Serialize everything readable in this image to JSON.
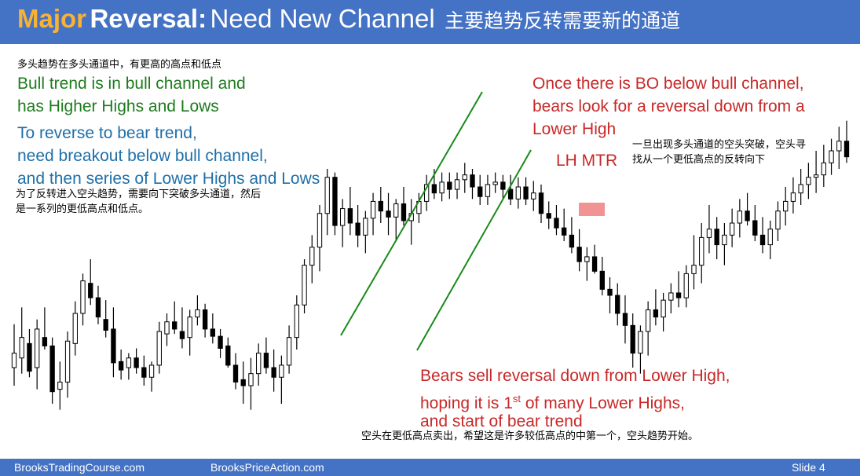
{
  "title": {
    "major": "Major",
    "reversal": "Reversal:",
    "need": "Need New Channel",
    "chinese": "主要趋势反转需要新的通道"
  },
  "notes": {
    "top_left_cn": "多头趋势在多头通道中，有更高的高点和低点",
    "bull_line1": "Bull trend is in bull channel and",
    "bull_line2": "has Higher Highs and Lows",
    "reverse_line1": "To reverse to bear trend,",
    "reverse_line2": "need breakout below bull channel,",
    "reverse_line3": "and then series of Lower Highs and Lows",
    "reverse_cn1": "为了反转进入空头趋势，需要向下突破多头通道，然后",
    "reverse_cn2": "是一系列的更低高点和低点。",
    "bo_line1": "Once there is BO below bull channel,",
    "bo_line2": "bears look for a reversal down from a",
    "bo_line3": "Lower High",
    "lh_mtr": "LH MTR",
    "bo_cn1": "一旦出现多头通道的空头突破，空头寻",
    "bo_cn2": "找从一个更低高点的反转向下",
    "bears_line1": "Bears sell reversal down from Lower High,",
    "bears_line2a": "hoping it is 1",
    "bears_line2_sup": "st",
    "bears_line2b": " of many Lower Highs,",
    "bears_line3": "and start of bear trend",
    "bears_cn": "空头在更低高点卖出，希望这是许多较低高点的中第一个，空头趋势开始。"
  },
  "footer": {
    "left": "BrooksTradingCourse.com",
    "middle": "BrooksPriceAction.com",
    "slide": "Slide  4"
  },
  "colors": {
    "title_bg": "#4472c4",
    "title_accent": "#f9b233",
    "channel_line": "#1a8a1a",
    "highlight": "#f08080"
  },
  "chart_data": {
    "type": "candlestick",
    "series": [
      {
        "values": [
          [
            360,
            396,
            345,
            372
          ],
          [
            368,
            410,
            355,
            385
          ],
          [
            380,
            392,
            352,
            357
          ],
          [
            360,
            400,
            342,
            392
          ],
          [
            385,
            410,
            375,
            378
          ],
          [
            378,
            385,
            330,
            340
          ],
          [
            342,
            365,
            325,
            348
          ],
          [
            348,
            390,
            335,
            382
          ],
          [
            380,
            415,
            370,
            405
          ],
          [
            405,
            438,
            395,
            432
          ],
          [
            430,
            450,
            412,
            418
          ],
          [
            418,
            428,
            396,
            402
          ],
          [
            400,
            416,
            385,
            391
          ],
          [
            392,
            410,
            352,
            364
          ],
          [
            365,
            375,
            350,
            358
          ],
          [
            360,
            372,
            350,
            368
          ],
          [
            368,
            376,
            355,
            360
          ],
          [
            360,
            370,
            345,
            352
          ],
          [
            352,
            365,
            340,
            362
          ],
          [
            362,
            398,
            355,
            390
          ],
          [
            388,
            405,
            378,
            398
          ],
          [
            398,
            415,
            388,
            392
          ],
          [
            390,
            410,
            376,
            384
          ],
          [
            385,
            408,
            370,
            402
          ],
          [
            402,
            420,
            395,
            408
          ],
          [
            408,
            413,
            385,
            392
          ],
          [
            392,
            405,
            380,
            386
          ],
          [
            386,
            392,
            368,
            376
          ],
          [
            378,
            385,
            360,
            362
          ],
          [
            362,
            372,
            342,
            348
          ],
          [
            350,
            365,
            330,
            345
          ],
          [
            345,
            368,
            325,
            355
          ],
          [
            355,
            380,
            345,
            372
          ],
          [
            372,
            385,
            355,
            360
          ],
          [
            360,
            375,
            340,
            352
          ],
          [
            352,
            370,
            330,
            362
          ],
          [
            362,
            395,
            355,
            385
          ],
          [
            385,
            420,
            375,
            412
          ],
          [
            412,
            450,
            405,
            445
          ],
          [
            445,
            470,
            430,
            460
          ],
          [
            460,
            495,
            440,
            488
          ],
          [
            488,
            525,
            470,
            518
          ],
          [
            518,
            522,
            470,
            478
          ],
          [
            478,
            500,
            460,
            492
          ],
          [
            492,
            510,
            470,
            480
          ],
          [
            480,
            495,
            460,
            470
          ],
          [
            470,
            490,
            455,
            484
          ],
          [
            484,
            505,
            470,
            498
          ],
          [
            498,
            510,
            480,
            490
          ],
          [
            490,
            505,
            470,
            485
          ],
          [
            485,
            500,
            465,
            496
          ],
          [
            496,
            510,
            478,
            482
          ],
          [
            482,
            500,
            462,
            488
          ],
          [
            488,
            505,
            480,
            498
          ],
          [
            498,
            520,
            490,
            512
          ],
          [
            512,
            525,
            500,
            505
          ],
          [
            505,
            522,
            498,
            514
          ],
          [
            514,
            522,
            500,
            508
          ],
          [
            508,
            522,
            500,
            516
          ],
          [
            516,
            530,
            505,
            520
          ],
          [
            520,
            525,
            500,
            510
          ],
          [
            510,
            520,
            495,
            502
          ],
          [
            502,
            520,
            495,
            512
          ],
          [
            512,
            522,
            505,
            514
          ],
          [
            514,
            520,
            500,
            508
          ],
          [
            508,
            520,
            495,
            500
          ],
          [
            500,
            518,
            492,
            510
          ],
          [
            510,
            518,
            495,
            500
          ],
          [
            500,
            515,
            490,
            505
          ],
          [
            505,
            512,
            480,
            488
          ],
          [
            488,
            498,
            475,
            484
          ],
          [
            484,
            495,
            470,
            476
          ],
          [
            476,
            492,
            465,
            470
          ],
          [
            470,
            485,
            455,
            460
          ],
          [
            460,
            475,
            440,
            448
          ],
          [
            448,
            460,
            432,
            452
          ],
          [
            452,
            462,
            438,
            440
          ],
          [
            440,
            452,
            420,
            425
          ],
          [
            425,
            435,
            405,
            420
          ],
          [
            420,
            430,
            395,
            405
          ],
          [
            405,
            420,
            380,
            395
          ],
          [
            395,
            405,
            360,
            372
          ],
          [
            372,
            395,
            355,
            390
          ],
          [
            390,
            415,
            370,
            408
          ],
          [
            408,
            425,
            395,
            402
          ],
          [
            402,
            422,
            390,
            416
          ],
          [
            416,
            430,
            405,
            422
          ],
          [
            422,
            440,
            410,
            418
          ],
          [
            418,
            445,
            410,
            438
          ],
          [
            438,
            470,
            425,
            445
          ],
          [
            445,
            480,
            430,
            468
          ],
          [
            468,
            495,
            455,
            475
          ],
          [
            475,
            485,
            450,
            462
          ],
          [
            462,
            480,
            445,
            470
          ],
          [
            470,
            492,
            460,
            480
          ],
          [
            480,
            500,
            468,
            490
          ],
          [
            490,
            505,
            478,
            482
          ],
          [
            482,
            495,
            465,
            470
          ],
          [
            470,
            485,
            455,
            462
          ],
          [
            462,
            482,
            450,
            475
          ],
          [
            475,
            498,
            465,
            490
          ],
          [
            490,
            510,
            478,
            498
          ],
          [
            498,
            518,
            488,
            505
          ],
          [
            505,
            525,
            495,
            512
          ],
          [
            512,
            530,
            500,
            518
          ],
          [
            518,
            540,
            505,
            520
          ],
          [
            520,
            545,
            510,
            530
          ],
          [
            530,
            550,
            520,
            540
          ],
          [
            540,
            560,
            525,
            548
          ],
          [
            548,
            565,
            530,
            535
          ]
        ]
      }
    ]
  }
}
